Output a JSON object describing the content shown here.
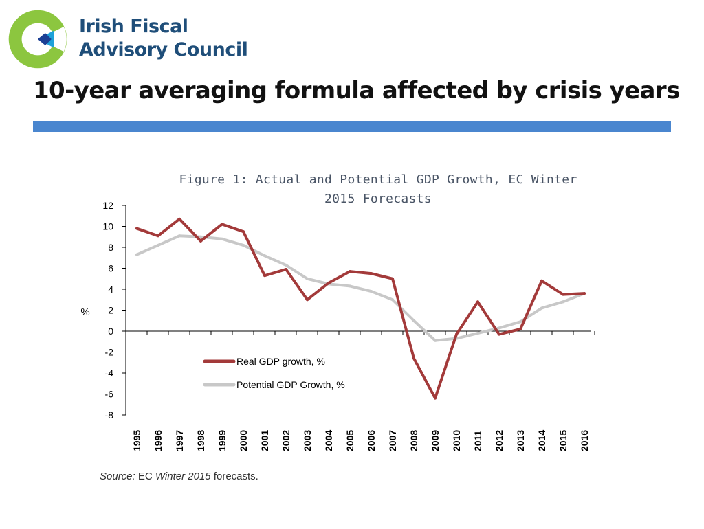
{
  "header": {
    "org_line1": "Irish Fiscal",
    "org_line2": "Advisory Council",
    "slide_title": "10-year averaging formula affected by crisis years"
  },
  "colors": {
    "real": "#a33a3a",
    "potential": "#c8c8c8",
    "accent_bar": "#4a86cf",
    "brand_blue": "#1f4e79"
  },
  "chart_data": {
    "type": "line",
    "title_line1": "Figure 1: Actual and Potential GDP Growth, EC Winter",
    "title_line2": "2015 Forecasts",
    "ylabel": "%",
    "xlabel": "",
    "ylim": [
      -8,
      12
    ],
    "yticks": [
      12,
      10,
      8,
      6,
      4,
      2,
      0,
      -2,
      -4,
      -6,
      -8
    ],
    "categories": [
      "1995",
      "1996",
      "1997",
      "1998",
      "1999",
      "2000",
      "2001",
      "2002",
      "2003",
      "2004",
      "2005",
      "2006",
      "2007",
      "2008",
      "2009",
      "2010",
      "2011",
      "2012",
      "2013",
      "2014",
      "2015",
      "2016"
    ],
    "series": [
      {
        "name": "Real GDP growth, %",
        "color": "#a33a3a",
        "values": [
          9.8,
          9.1,
          10.7,
          8.6,
          10.2,
          9.5,
          5.3,
          5.9,
          3.0,
          4.6,
          5.7,
          5.5,
          5.0,
          -2.6,
          -6.4,
          -0.3,
          2.8,
          -0.3,
          0.2,
          4.8,
          3.5,
          3.6
        ]
      },
      {
        "name": "Potential GDP Growth, %",
        "color": "#c8c8c8",
        "values": [
          7.3,
          8.2,
          9.1,
          9.0,
          8.8,
          8.2,
          7.2,
          6.3,
          5.0,
          4.5,
          4.3,
          3.8,
          3.0,
          1.0,
          -0.9,
          -0.7,
          -0.2,
          0.3,
          0.9,
          2.2,
          2.8,
          3.6
        ]
      }
    ],
    "legend_position": "lower-left",
    "source_prefix": "Source:",
    "source_mid": " EC ",
    "source_italic": "Winter 2015",
    "source_suffix": " forecasts."
  }
}
